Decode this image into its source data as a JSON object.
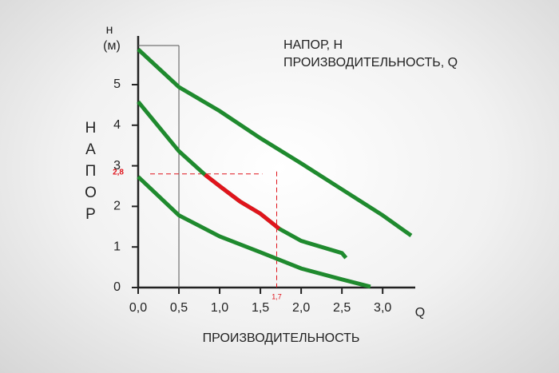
{
  "chart_data": {
    "type": "line",
    "title": "НАПОР, Н",
    "subtitle": "ПРОИЗВОДИТЕЛЬНОСТЬ, Q",
    "y_unit_symbol": "н",
    "y_unit": "(м)",
    "y_label": "НАПОР",
    "x_label": "ПРОИЗВОДИТЕЛЬНОСТЬ",
    "x_axis_symbol": "Q",
    "xlim": [
      0,
      3.4
    ],
    "ylim": [
      0,
      6.2
    ],
    "xticks": [
      {
        "value": 0,
        "label": "0,0"
      },
      {
        "value": 0.5,
        "label": "0,5"
      },
      {
        "value": 1,
        "label": "1,0"
      },
      {
        "value": 1.5,
        "label": "1,5"
      },
      {
        "value": 2,
        "label": "2,0"
      },
      {
        "value": 2.5,
        "label": "2,5"
      },
      {
        "value": 3,
        "label": "3,0"
      }
    ],
    "yticks": [
      0,
      1,
      2,
      3,
      4,
      5
    ],
    "series": [
      {
        "color": "#1f8a2e",
        "x": [
          0,
          0.5,
          1,
          1.5,
          2,
          2.5,
          3,
          3.35
        ],
        "values": [
          5.87,
          4.94,
          4.35,
          3.68,
          3.06,
          2.42,
          1.78,
          1.28
        ]
      },
      {
        "color": "#1f8a2e",
        "x": [
          0,
          0.5,
          0.82,
          1,
          1.25,
          1.5,
          1.73,
          2,
          2.5,
          2.55
        ],
        "values": [
          4.58,
          3.36,
          2.78,
          2.5,
          2.12,
          1.82,
          1.45,
          1.15,
          0.85,
          0.73
        ]
      },
      {
        "color": "#1f8a2e",
        "x": [
          0,
          0.5,
          1,
          1.5,
          2,
          2.5,
          2.85
        ],
        "values": [
          2.73,
          1.78,
          1.26,
          0.87,
          0.47,
          0.2,
          0.02
        ]
      },
      {
        "color": "#e0141c",
        "x": [
          0.82,
          1,
          1.25,
          1.5,
          1.73
        ],
        "values": [
          2.78,
          2.5,
          2.12,
          1.82,
          1.45
        ]
      }
    ],
    "h_marker": {
      "value": 2.8,
      "label": "2,8"
    },
    "q_marker": {
      "value": 1.7,
      "label": "1,7"
    },
    "marker_color": "#e0141c"
  }
}
